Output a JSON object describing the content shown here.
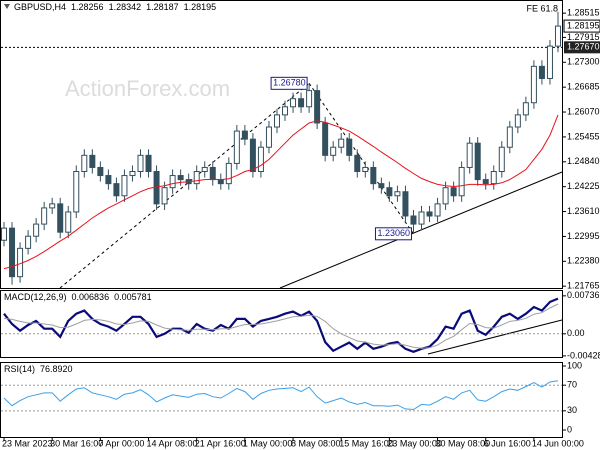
{
  "chart_data": [
    {
      "type": "candlestick",
      "title": "GBPUSD,H4",
      "header_values": [
        1.28256,
        1.28342,
        1.28187,
        1.28195
      ],
      "watermark": "ActionForex.com",
      "fe_label": "FE 61.8",
      "categories": [
        "23 Mar 2023",
        null,
        null,
        null,
        null,
        null,
        "30 Mar 16:00",
        null,
        null,
        null,
        null,
        null,
        "7 Apr 00:00",
        null,
        null,
        null,
        null,
        null,
        "14 Apr 08:00",
        null,
        null,
        null,
        null,
        null,
        "21 Apr 16:00",
        null,
        null,
        null,
        null,
        null,
        "1 May 00:00",
        null,
        null,
        null,
        null,
        null,
        "8 May 08:00",
        null,
        null,
        null,
        null,
        null,
        "15 May 16:00",
        null,
        null,
        null,
        null,
        null,
        "23 May 00:00",
        null,
        null,
        null,
        null,
        null,
        "30 May 08:00",
        null,
        null,
        null,
        null,
        null,
        "6 Jun 16:00",
        null,
        null,
        null,
        null,
        null,
        "14 Jun 00:00",
        null,
        null,
        null
      ],
      "open": [
        1.229,
        1.232,
        1.22,
        1.227,
        1.23,
        1.233,
        1.237,
        1.238,
        1.231,
        1.236,
        1.246,
        1.25,
        1.247,
        1.245,
        1.243,
        1.24,
        1.245,
        1.246,
        1.25,
        1.246,
        1.238,
        1.242,
        1.245,
        1.244,
        1.243,
        1.246,
        1.247,
        1.244,
        1.243,
        1.248,
        1.256,
        1.254,
        1.246,
        1.252,
        1.257,
        1.26,
        1.262,
        1.264,
        1.262,
        1.266,
        1.258,
        1.25,
        1.252,
        1.254,
        1.25,
        1.246,
        1.247,
        1.243,
        1.242,
        1.24,
        1.241,
        1.235,
        1.233,
        1.236,
        1.235,
        1.238,
        1.242,
        1.24,
        1.247,
        1.253,
        1.244,
        1.243,
        1.246,
        1.252,
        1.257,
        1.26,
        1.263,
        1.272,
        1.269,
        1.277
      ],
      "high": [
        1.2335,
        1.2335,
        1.2285,
        1.2315,
        1.2345,
        1.2385,
        1.2395,
        1.2395,
        1.2375,
        1.2475,
        1.2515,
        1.2515,
        1.2485,
        1.2465,
        1.2445,
        1.2465,
        1.2475,
        1.2515,
        1.2515,
        1.2475,
        1.2435,
        1.2465,
        1.2465,
        1.2455,
        1.2475,
        1.2485,
        1.2485,
        1.2455,
        1.2495,
        1.2575,
        1.2575,
        1.2555,
        1.2535,
        1.2585,
        1.2615,
        1.2635,
        1.2655,
        1.2655,
        1.2678,
        1.2675,
        1.2595,
        1.2535,
        1.2555,
        1.2555,
        1.2515,
        1.2485,
        1.2485,
        1.2445,
        1.2435,
        1.2425,
        1.2425,
        1.2365,
        1.2375,
        1.2375,
        1.2395,
        1.2435,
        1.2435,
        1.2485,
        1.2545,
        1.2545,
        1.2455,
        1.2475,
        1.2535,
        1.2585,
        1.2615,
        1.2645,
        1.2735,
        1.2735,
        1.2785,
        1.2855
      ],
      "low": [
        1.2275,
        1.218,
        1.2185,
        1.2255,
        1.2285,
        1.2315,
        1.2355,
        1.2295,
        1.2295,
        1.2345,
        1.2445,
        1.2455,
        1.2435,
        1.2415,
        1.2385,
        1.2385,
        1.2435,
        1.2445,
        1.2445,
        1.2365,
        1.2365,
        1.2405,
        1.2425,
        1.2415,
        1.2415,
        1.2445,
        1.2425,
        1.2415,
        1.2415,
        1.2465,
        1.2525,
        1.2445,
        1.2445,
        1.2505,
        1.2555,
        1.2585,
        1.2605,
        1.2605,
        1.2605,
        1.2565,
        1.2485,
        1.2485,
        1.2505,
        1.2485,
        1.2445,
        1.2445,
        1.2415,
        1.2405,
        1.2385,
        1.2385,
        1.2335,
        1.2306,
        1.2315,
        1.2335,
        1.2335,
        1.2365,
        1.2385,
        1.2385,
        1.2455,
        1.2425,
        1.2415,
        1.2415,
        1.2445,
        1.2505,
        1.2555,
        1.2585,
        1.2615,
        1.2675,
        1.2675,
        1.2755
      ],
      "close": [
        1.232,
        1.22,
        1.227,
        1.23,
        1.233,
        1.237,
        1.238,
        1.231,
        1.236,
        1.246,
        1.25,
        1.247,
        1.245,
        1.243,
        1.24,
        1.245,
        1.246,
        1.25,
        1.246,
        1.238,
        1.242,
        1.245,
        1.244,
        1.243,
        1.246,
        1.247,
        1.244,
        1.243,
        1.248,
        1.256,
        1.254,
        1.246,
        1.252,
        1.257,
        1.26,
        1.262,
        1.264,
        1.262,
        1.266,
        1.258,
        1.25,
        1.252,
        1.254,
        1.25,
        1.246,
        1.247,
        1.243,
        1.242,
        1.24,
        1.241,
        1.235,
        1.233,
        1.236,
        1.235,
        1.238,
        1.242,
        1.24,
        1.247,
        1.253,
        1.244,
        1.243,
        1.246,
        1.252,
        1.257,
        1.26,
        1.263,
        1.272,
        1.269,
        1.277,
        1.28195
      ],
      "candle_color": "#33505f",
      "moving_average": {
        "color": "#e8131b",
        "values": [
          1.222,
          1.2225,
          1.2232,
          1.224,
          1.225,
          1.2262,
          1.2275,
          1.2288,
          1.23,
          1.2315,
          1.233,
          1.2345,
          1.2358,
          1.237,
          1.238,
          1.239,
          1.24,
          1.241,
          1.2418,
          1.2422,
          1.2425,
          1.243,
          1.2433,
          1.2435,
          1.2437,
          1.244,
          1.2441,
          1.244,
          1.2442,
          1.245,
          1.246,
          1.2465,
          1.2475,
          1.249,
          1.251,
          1.253,
          1.255,
          1.2565,
          1.258,
          1.2585,
          1.2582,
          1.2575,
          1.2568,
          1.256,
          1.2548,
          1.2535,
          1.2522,
          1.2508,
          1.2495,
          1.2482,
          1.2468,
          1.2455,
          1.2443,
          1.2435,
          1.2428,
          1.2425,
          1.2423,
          1.2425,
          1.2428,
          1.2428,
          1.2427,
          1.2428,
          1.2432,
          1.244,
          1.2452,
          1.2465,
          1.249,
          1.2515,
          1.255,
          1.26
        ]
      },
      "annotations": [
        {
          "value": 1.2678,
          "label": "1.26780"
        },
        {
          "value": 1.2306,
          "label": "1.23060"
        }
      ],
      "level": {
        "value": 1.2767,
        "label": "1.27670"
      },
      "current_price": 1.28195,
      "ylim": [
        1.2172,
        1.2884
      ],
      "yticks": [
        1.28515,
        1.27915,
        {
          "value": 1.273,
          "label": "1.27300"
        },
        1.26685,
        {
          "value": 1.2607,
          "label": "1.26070"
        },
        1.25455,
        {
          "value": 1.2484,
          "label": "1.24840"
        },
        1.24225,
        {
          "value": 1.2361,
          "label": "1.23610"
        },
        1.22995,
        {
          "value": 1.2238,
          "label": "1.22380"
        },
        1.21765
      ],
      "grid": false
    },
    {
      "type": "line",
      "title": "MACD(12,26,9)",
      "header_values": [
        0.006836,
        0.005781
      ],
      "series": [
        {
          "color": "#0a0a7a",
          "values": [
            0.0039,
            0.0019,
            0.0006,
            0.0017,
            0.0025,
            0.001,
            0.001,
            -0.0006,
            0.0025,
            0.0039,
            0.0045,
            0.0029,
            0.0019,
            0.0014,
            0.0006,
            0.0019,
            0.0033,
            0.0033,
            0.0019,
            -0.0006,
            0,
            0.001,
            0.001,
            0.0002,
            0.0019,
            0.001,
            0.0006,
            0.0017,
            0.001,
            0.0029,
            0.0029,
            0.0014,
            0.0025,
            0.0029,
            0.0033,
            0.0039,
            0.0043,
            0.0035,
            0.0043,
            0.0025,
            -0.0016,
            -0.0033,
            -0.0025,
            -0.0017,
            -0.0029,
            -0.0017,
            -0.0029,
            -0.0025,
            -0.0019,
            -0.0016,
            -0.0029,
            -0.0035,
            -0.0029,
            -0.0025,
            -0.001,
            0.0014,
            0.001,
            0.0039,
            0.0045,
            0.0006,
            -0.0002,
            0.0014,
            0.0033,
            0.0039,
            0.0029,
            0.0039,
            0.0052,
            0.0045,
            0.0062,
            0.006836
          ]
        },
        {
          "color": "#a0a0a0",
          "values": [
            0.003,
            0.0028,
            0.0024,
            0.0021,
            0.0021,
            0.0019,
            0.0017,
            0.0012,
            0.0013,
            0.0019,
            0.0026,
            0.0028,
            0.0027,
            0.0024,
            0.0019,
            0.0018,
            0.0021,
            0.0025,
            0.0024,
            0.0017,
            0.0011,
            0.0009,
            0.0008,
            0.0007,
            0.0009,
            0.0009,
            0.0008,
            0.001,
            0.001,
            0.0014,
            0.0018,
            0.0018,
            0.0019,
            0.0022,
            0.0025,
            0.0029,
            0.0033,
            0.0034,
            0.0036,
            0.0034,
            0.0024,
            0.001,
            0,
            -0.0007,
            -0.0014,
            -0.0016,
            -0.002,
            -0.0022,
            -0.0021,
            -0.0019,
            -0.0022,
            -0.0026,
            -0.0028,
            -0.0027,
            -0.0022,
            -0.0012,
            -0.0005,
            0.0008,
            0.002,
            0.0018,
            0.0012,
            0.0011,
            0.0017,
            0.0024,
            0.0026,
            0.003,
            0.0038,
            0.0041,
            0.005,
            0.005781
          ]
        }
      ],
      "ylim": [
        -0.0045,
        0.0085
      ],
      "yticks": [
        0.007366,
        {
          "value": 0,
          "label": "0.00"
        },
        -0.004286
      ],
      "grid": true
    },
    {
      "type": "line",
      "title": "RSI(14)",
      "header_values": [
        {
          "value": 76.892,
          "label": "76.8920"
        }
      ],
      "series": [
        {
          "color": "#3aa0e8",
          "values": [
            50,
            38,
            46,
            52,
            55,
            58,
            58,
            45,
            55,
            64,
            66,
            58,
            55,
            52,
            48,
            56,
            58,
            63,
            55,
            44,
            50,
            55,
            53,
            51,
            56,
            57,
            52,
            50,
            57,
            65,
            60,
            48,
            57,
            62,
            64,
            65,
            66,
            60,
            67,
            52,
            42,
            46,
            50,
            44,
            40,
            43,
            38,
            38,
            37,
            39,
            33,
            32,
            40,
            39,
            45,
            52,
            48,
            58,
            62,
            47,
            45,
            52,
            60,
            64,
            62,
            68,
            74,
            67,
            75,
            76.892
          ]
        }
      ],
      "ylim": [
        -10.9,
        106.25
      ],
      "yticks": [
        100,
        70,
        30,
        0
      ],
      "grid": true
    }
  ]
}
